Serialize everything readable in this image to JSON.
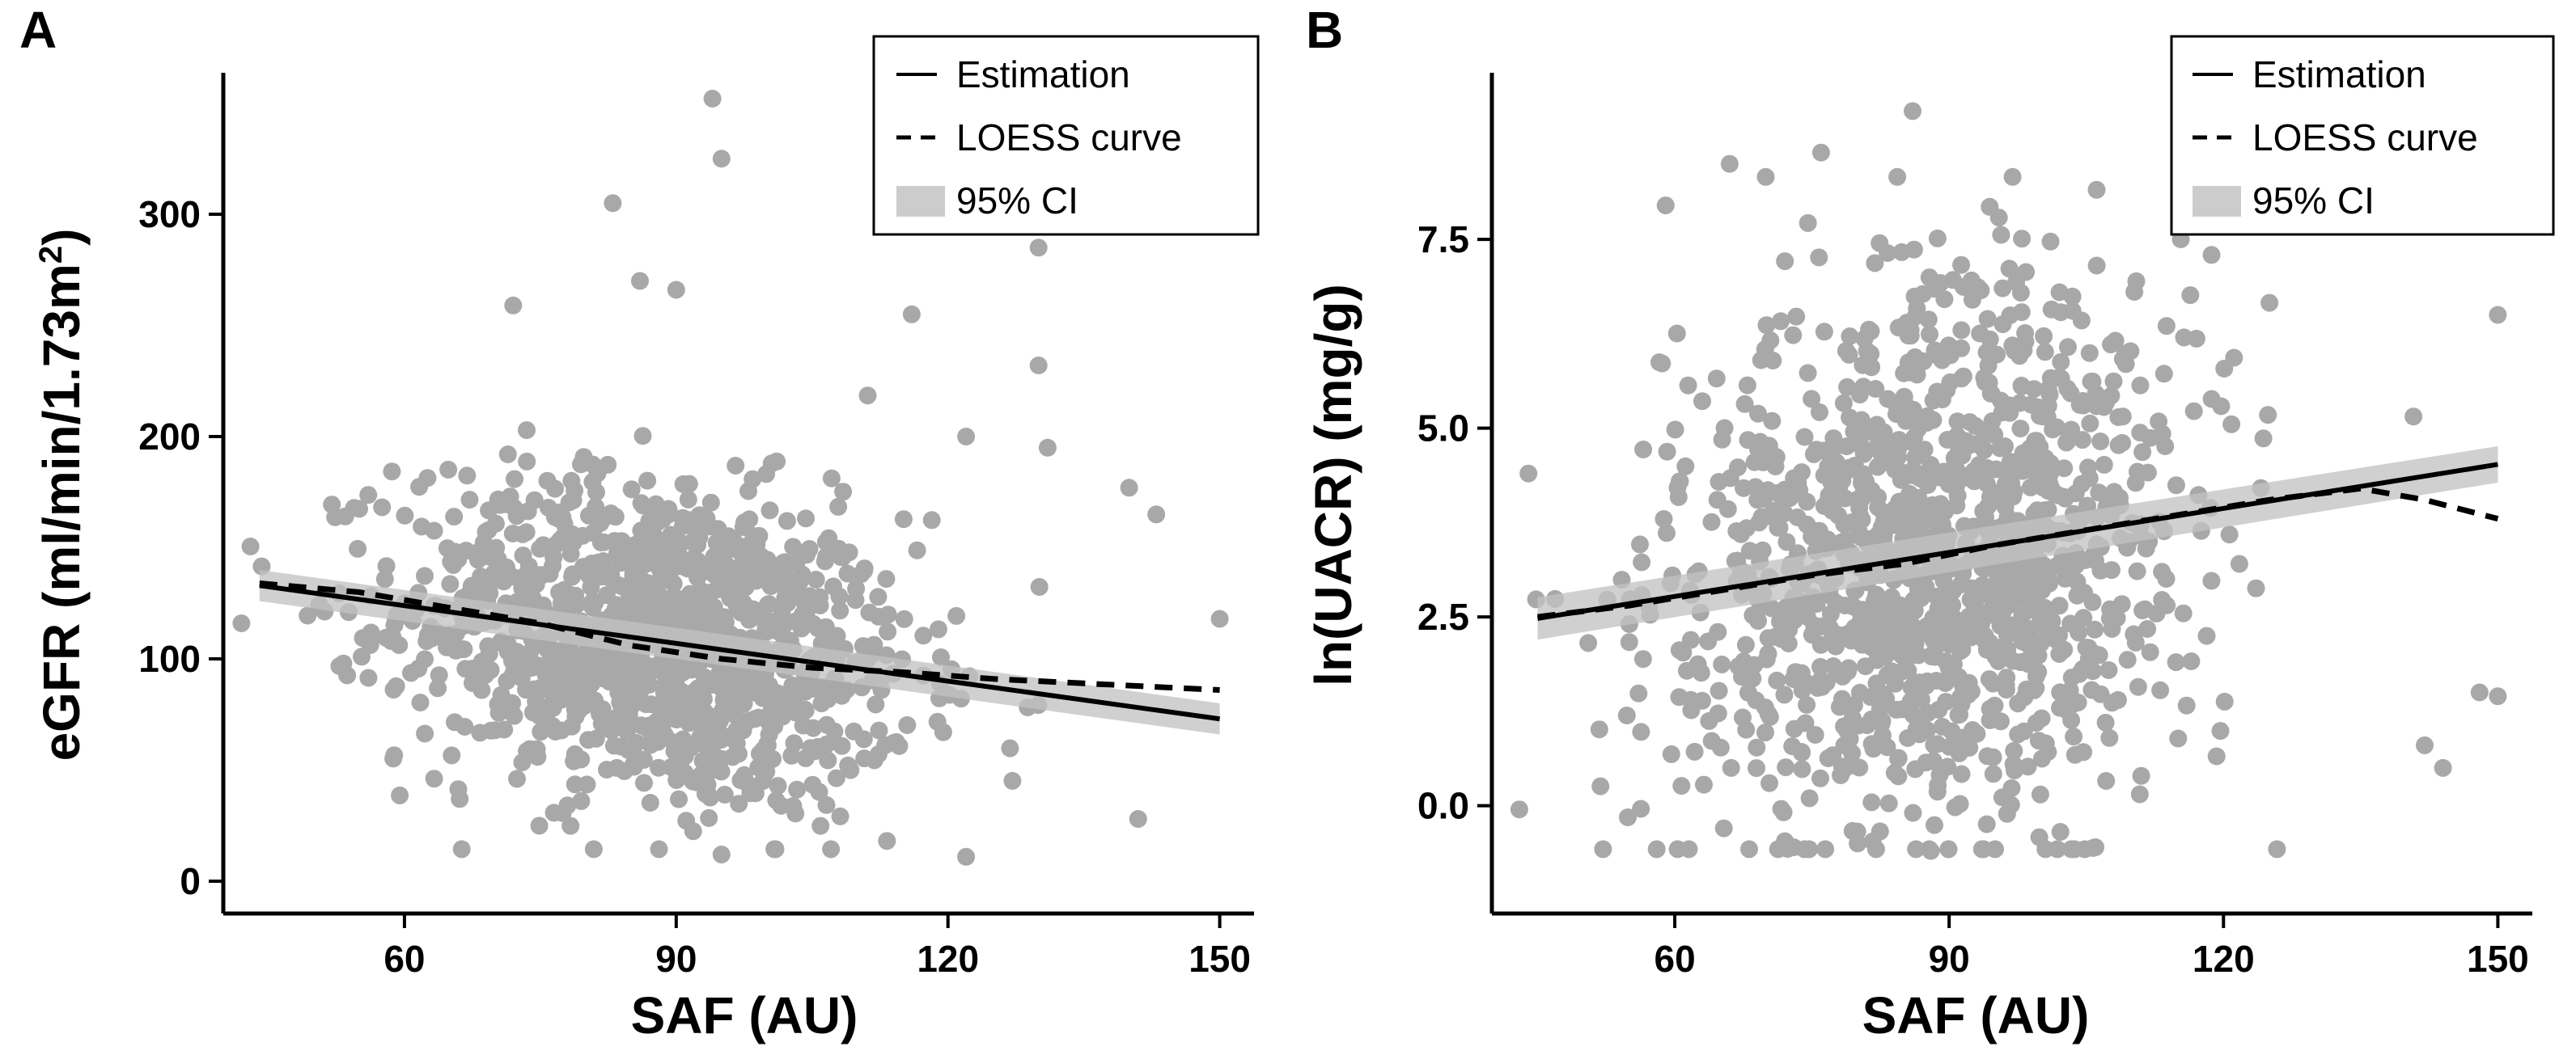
{
  "figure": {
    "panel_labels": [
      "A",
      "B"
    ]
  },
  "legend": {
    "estimation": "Estimation",
    "loess": "LOESS curve",
    "ci": "95% CI"
  },
  "colors": {
    "points": "#a8a8a8",
    "line": "#000000",
    "ci_band": "#cccccc"
  },
  "chart_data": [
    {
      "panel": "A",
      "type": "scatter",
      "title": "",
      "xlabel": "SAF (AU)",
      "ylabel": "eGFR (ml/min/1.73m²)",
      "ylabel_main": "eGFR (ml/min/1.73m",
      "ylabel_sup": "2",
      "ylabel_end": ")",
      "xlim": [
        40,
        152
      ],
      "ylim": [
        0,
        360
      ],
      "xticks": [
        60,
        90,
        120,
        150
      ],
      "xtick_labels": [
        "60",
        "90",
        "120",
        "150"
      ],
      "yticks": [
        0,
        100,
        200,
        300
      ],
      "ytick_labels": [
        "0",
        "100",
        "200",
        "300"
      ],
      "legend_position": "top-right",
      "estimation_line": {
        "x": [
          44,
          150
        ],
        "y": [
          133,
          73
        ]
      },
      "ci_band": {
        "x": [
          44,
          150
        ],
        "y_lower": [
          126,
          66
        ],
        "y_upper": [
          140,
          80
        ]
      },
      "loess_curve": {
        "x": [
          44,
          55,
          65,
          75,
          85,
          95,
          105,
          115,
          125,
          135,
          145,
          150
        ],
        "y": [
          134,
          130,
          123,
          116,
          106,
          100,
          96,
          94,
          91,
          89,
          87,
          86
        ]
      },
      "scatter_generator": {
        "n": 1200,
        "x_mean": 88,
        "x_sd": 14,
        "y_intercept_at_x": 44,
        "y_at_intercept": 133,
        "slope": -0.566,
        "y_sd": 36
      },
      "scatter_extra": [
        {
          "x": 94,
          "y": 352
        },
        {
          "x": 95,
          "y": 325
        },
        {
          "x": 83,
          "y": 305
        },
        {
          "x": 130,
          "y": 285
        },
        {
          "x": 86,
          "y": 270
        },
        {
          "x": 90,
          "y": 266
        },
        {
          "x": 72,
          "y": 259
        },
        {
          "x": 116,
          "y": 255
        },
        {
          "x": 130,
          "y": 232
        },
        {
          "x": 131,
          "y": 195
        },
        {
          "x": 122,
          "y": 200
        },
        {
          "x": 140,
          "y": 177
        },
        {
          "x": 143,
          "y": 165
        },
        {
          "x": 42,
          "y": 116
        },
        {
          "x": 95,
          "y": 12
        },
        {
          "x": 122,
          "y": 11
        },
        {
          "x": 150,
          "y": 118
        },
        {
          "x": 141,
          "y": 28
        }
      ]
    },
    {
      "panel": "B",
      "type": "scatter",
      "title": "",
      "xlabel": "SAF (AU)",
      "ylabel": "ln(UACR) (mg/g)",
      "xlim": [
        40,
        152
      ],
      "ylim": [
        -1.0,
        9.6
      ],
      "xticks": [
        60,
        90,
        120,
        150
      ],
      "xtick_labels": [
        "60",
        "90",
        "120",
        "150"
      ],
      "yticks": [
        0.0,
        2.5,
        5.0,
        7.5
      ],
      "ytick_labels": [
        "0.0",
        "2.5",
        "5.0",
        "7.5"
      ],
      "legend_position": "top-right",
      "estimation_line": {
        "x": [
          45,
          150
        ],
        "y": [
          2.48,
          4.52
        ]
      },
      "ci_band": {
        "x": [
          45,
          150
        ],
        "y_lower": [
          2.2,
          4.28
        ],
        "y_upper": [
          2.76,
          4.76
        ]
      },
      "loess_curve": {
        "x": [
          45,
          55,
          65,
          75,
          85,
          95,
          105,
          115,
          125,
          135,
          142,
          150
        ],
        "y": [
          2.5,
          2.65,
          2.85,
          3.05,
          3.2,
          3.45,
          3.65,
          3.85,
          4.05,
          4.2,
          4.05,
          3.8
        ]
      },
      "scatter_generator": {
        "n": 1300,
        "x_mean": 88,
        "x_sd": 14,
        "y_intercept_at_x": 45,
        "y_at_intercept": 2.48,
        "slope": 0.0194,
        "y_sd": 1.75
      },
      "scatter_extra": [
        {
          "x": 86,
          "y": 9.2
        },
        {
          "x": 44,
          "y": 4.4
        },
        {
          "x": 59,
          "y": 7.95
        },
        {
          "x": 66,
          "y": 8.5
        },
        {
          "x": 76,
          "y": 8.65
        },
        {
          "x": 148,
          "y": 1.5
        },
        {
          "x": 150,
          "y": 1.45
        },
        {
          "x": 144,
          "y": 0.5
        },
        {
          "x": 142,
          "y": 0.8
        },
        {
          "x": 150,
          "y": 6.5
        },
        {
          "x": 88,
          "y": -0.6
        },
        {
          "x": 73,
          "y": -0.55
        },
        {
          "x": 106,
          "y": -0.55
        },
        {
          "x": 80,
          "y": -0.5
        }
      ]
    }
  ]
}
